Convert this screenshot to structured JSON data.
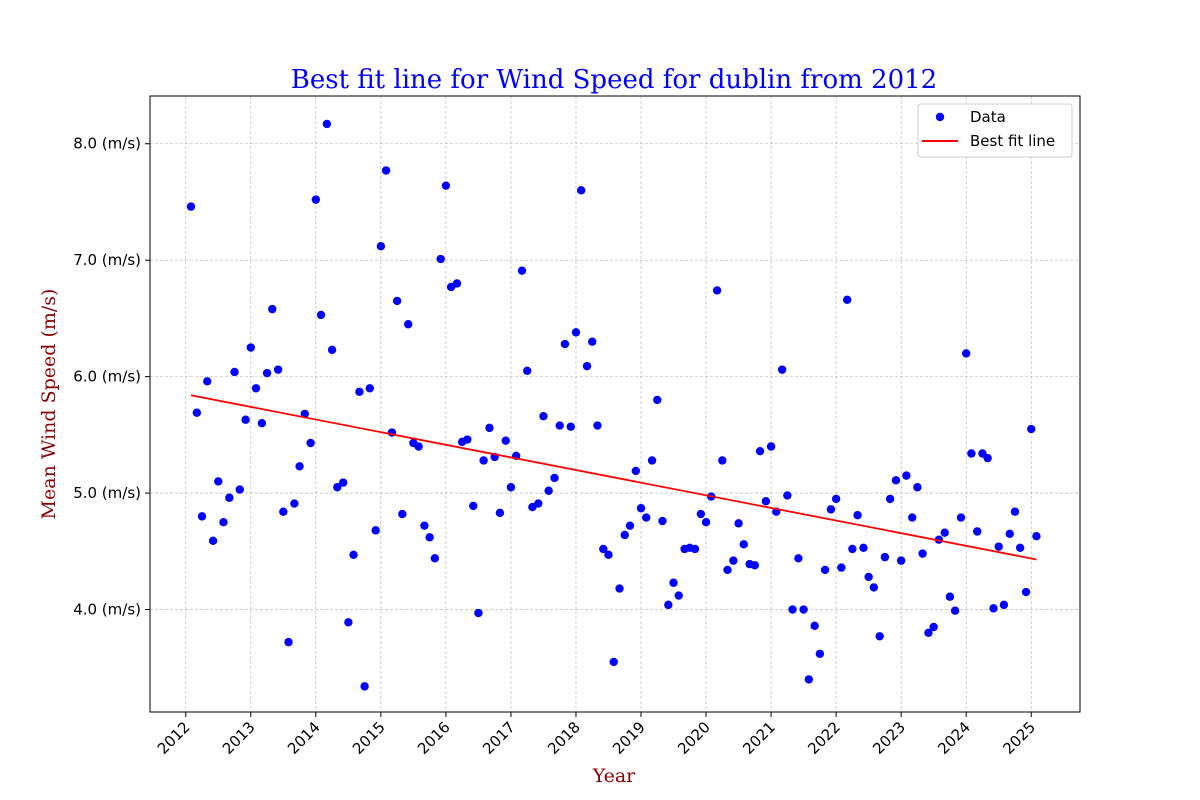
{
  "chart_data": {
    "type": "scatter",
    "title": "Best fit line for Wind Speed for dublin from 2012",
    "xlabel": "Year",
    "ylabel": "Mean Wind Speed (m/s)",
    "xlim": [
      2011.45,
      2025.75
    ],
    "ylim": [
      3.12,
      8.41
    ],
    "x_ticks": [
      2012,
      2013,
      2014,
      2015,
      2016,
      2017,
      2018,
      2019,
      2020,
      2021,
      2022,
      2023,
      2024,
      2025
    ],
    "x_tick_labels": [
      "2012",
      "2013",
      "2014",
      "2015",
      "2016",
      "2017",
      "2018",
      "2019",
      "2020",
      "2021",
      "2022",
      "2023",
      "2024",
      "2025"
    ],
    "y_ticks": [
      4.0,
      5.0,
      6.0,
      7.0,
      8.0
    ],
    "y_tick_labels": [
      "4.0 (m/s)",
      "5.0 (m/s)",
      "6.0 (m/s)",
      "7.0 (m/s)",
      "8.0 (m/s)"
    ],
    "grid": true,
    "legend_position": "top-right",
    "colors": {
      "title": "#0000ff",
      "axis_label": "#8b0000",
      "data": "#0000ff",
      "fit_line": "#ff0000",
      "grid": "#b0b0b0"
    },
    "series": [
      {
        "name": "Data",
        "kind": "scatter",
        "x": [
          2012.08,
          2012.17,
          2012.25,
          2012.33,
          2012.42,
          2012.5,
          2012.58,
          2012.67,
          2012.75,
          2012.83,
          2012.92,
          2013.0,
          2013.08,
          2013.17,
          2013.25,
          2013.33,
          2013.42,
          2013.5,
          2013.58,
          2013.67,
          2013.75,
          2013.83,
          2013.92,
          2014.0,
          2014.08,
          2014.17,
          2014.25,
          2014.33,
          2014.42,
          2014.5,
          2014.58,
          2014.67,
          2014.75,
          2014.83,
          2014.92,
          2015.0,
          2015.08,
          2015.17,
          2015.25,
          2015.33,
          2015.42,
          2015.5,
          2015.58,
          2015.67,
          2015.75,
          2015.83,
          2015.92,
          2016.0,
          2016.08,
          2016.17,
          2016.25,
          2016.33,
          2016.42,
          2016.5,
          2016.58,
          2016.67,
          2016.75,
          2016.83,
          2016.92,
          2017.0,
          2017.08,
          2017.17,
          2017.25,
          2017.33,
          2017.42,
          2017.5,
          2017.58,
          2017.67,
          2017.75,
          2017.83,
          2017.92,
          2018.0,
          2018.08,
          2018.17,
          2018.25,
          2018.33,
          2018.42,
          2018.5,
          2018.58,
          2018.67,
          2018.75,
          2018.83,
          2018.92,
          2019.0,
          2019.08,
          2019.17,
          2019.25,
          2019.33,
          2019.42,
          2019.5,
          2019.58,
          2019.67,
          2019.75,
          2019.83,
          2019.92,
          2020.0,
          2020.08,
          2020.17,
          2020.25,
          2020.33,
          2020.42,
          2020.5,
          2020.58,
          2020.67,
          2020.75,
          2020.83,
          2020.92,
          2021.0,
          2021.08,
          2021.17,
          2021.25,
          2021.33,
          2021.42,
          2021.5,
          2021.58,
          2021.67,
          2021.75,
          2021.83,
          2021.92,
          2022.0,
          2022.08,
          2022.17,
          2022.25,
          2022.33,
          2022.42,
          2022.5,
          2022.58,
          2022.67,
          2022.75,
          2022.83,
          2022.92,
          2023.0,
          2023.08,
          2023.17,
          2023.25,
          2023.33,
          2023.42,
          2023.5,
          2023.58,
          2023.67,
          2023.75,
          2023.83,
          2023.92,
          2024.0,
          2024.08,
          2024.17,
          2024.25,
          2024.33,
          2024.42,
          2024.5,
          2024.58,
          2024.67,
          2024.75,
          2024.83,
          2024.92,
          2025.0,
          2025.08
        ],
        "y": [
          7.46,
          5.69,
          4.8,
          5.96,
          4.59,
          5.1,
          4.75,
          4.96,
          6.04,
          5.03,
          5.63,
          6.25,
          5.9,
          5.6,
          6.03,
          6.58,
          6.06,
          4.84,
          3.72,
          4.91,
          5.23,
          5.68,
          5.43,
          7.52,
          6.53,
          8.17,
          6.23,
          5.05,
          5.09,
          3.89,
          4.47,
          5.87,
          3.34,
          5.9,
          4.68,
          7.12,
          7.77,
          5.52,
          6.65,
          4.82,
          6.45,
          5.43,
          5.4,
          4.72,
          4.62,
          4.44,
          7.01,
          7.64,
          6.77,
          6.8,
          5.44,
          5.46,
          4.89,
          3.97,
          5.28,
          5.56,
          5.31,
          4.83,
          5.45,
          5.05,
          5.32,
          6.91,
          6.05,
          4.88,
          4.91,
          5.66,
          5.02,
          5.13,
          5.58,
          6.28,
          5.57,
          6.38,
          7.6,
          6.09,
          6.3,
          5.58,
          4.52,
          4.47,
          3.55,
          4.18,
          4.64,
          4.72,
          5.19,
          4.87,
          4.79,
          5.28,
          5.8,
          4.76,
          4.04,
          4.23,
          4.12,
          4.52,
          4.53,
          4.52,
          4.82,
          4.75,
          4.97,
          6.74,
          5.28,
          4.34,
          4.42,
          4.74,
          4.56,
          4.39,
          4.38,
          5.36,
          4.93,
          5.4,
          4.84,
          6.06,
          4.98,
          4.0,
          4.44,
          4.0,
          3.4,
          3.86,
          3.62,
          4.34,
          4.86,
          4.95,
          4.36,
          6.66,
          4.52,
          4.81,
          4.53,
          4.28,
          4.19,
          3.77,
          4.45,
          4.95,
          5.11,
          4.42,
          5.15,
          4.79,
          5.05,
          4.48,
          3.8,
          3.85,
          4.6,
          4.66,
          4.11,
          3.99,
          4.79,
          6.2,
          5.34,
          4.67,
          5.34,
          5.3,
          4.01,
          4.54,
          4.04,
          4.65,
          4.84,
          4.53,
          4.15,
          5.55,
          4.63
        ]
      },
      {
        "name": "Best fit line",
        "kind": "line",
        "x": [
          2012.08,
          2025.08
        ],
        "y": [
          5.84,
          4.43
        ]
      }
    ]
  }
}
